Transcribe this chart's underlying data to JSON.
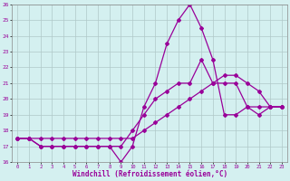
{
  "xlabel": "Windchill (Refroidissement éolien,°C)",
  "x": [
    0,
    1,
    2,
    3,
    4,
    5,
    6,
    7,
    8,
    9,
    10,
    11,
    12,
    13,
    14,
    15,
    16,
    17,
    18,
    19,
    20,
    21,
    22,
    23
  ],
  "line1": [
    17.5,
    17.5,
    17.0,
    17.0,
    17.0,
    17.0,
    17.0,
    17.0,
    17.0,
    16.0,
    17.0,
    19.5,
    21.0,
    23.5,
    25.0,
    26.0,
    24.5,
    22.5,
    19.0,
    19.0,
    19.5,
    19.5,
    19.5,
    19.5
  ],
  "line2": [
    17.5,
    17.5,
    17.0,
    17.0,
    17.0,
    17.0,
    17.0,
    17.0,
    17.0,
    17.0,
    18.0,
    19.0,
    20.0,
    20.5,
    21.0,
    21.0,
    22.5,
    21.0,
    21.0,
    21.0,
    19.5,
    19.0,
    19.5,
    19.5
  ],
  "line3": [
    17.5,
    17.5,
    17.5,
    17.5,
    17.5,
    17.5,
    17.5,
    17.5,
    17.5,
    17.5,
    17.5,
    18.0,
    18.5,
    19.0,
    19.5,
    20.0,
    20.5,
    21.0,
    21.5,
    21.5,
    21.0,
    20.5,
    19.5,
    19.5
  ],
  "ylim": [
    16,
    26
  ],
  "xlim_min": -0.5,
  "xlim_max": 23.5,
  "yticks": [
    16,
    17,
    18,
    19,
    20,
    21,
    22,
    23,
    24,
    25,
    26
  ],
  "xticks": [
    0,
    1,
    2,
    3,
    4,
    5,
    6,
    7,
    8,
    9,
    10,
    11,
    12,
    13,
    14,
    15,
    16,
    17,
    18,
    19,
    20,
    21,
    22,
    23
  ],
  "line_color": "#990099",
  "bg_color": "#d4f0f0",
  "grid_color": "#b0c8c8",
  "marker": "D",
  "marker_size": 2.0,
  "linewidth": 0.9
}
